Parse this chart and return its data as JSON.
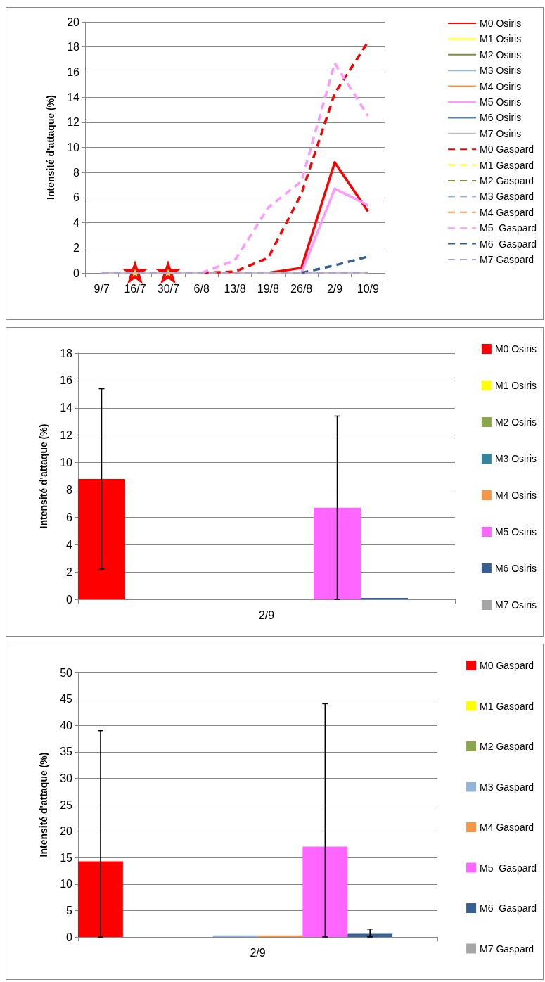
{
  "chart_data": [
    {
      "type": "line",
      "ylabel": "Intensité d'attaque (%)",
      "categories": [
        "9/7",
        "16/7",
        "30/7",
        "6/8",
        "13/8",
        "19/8",
        "26/8",
        "2/9",
        "10/9"
      ],
      "ylim": [
        0,
        20
      ],
      "yticks": [
        0,
        2,
        4,
        6,
        8,
        10,
        12,
        14,
        16,
        18,
        20
      ],
      "grid": "y",
      "legend": "right",
      "marker": "none",
      "series": [
        {
          "name": "M0 Osiris",
          "color": "#ff0000",
          "line_style": "solid",
          "values": [
            null,
            null,
            null,
            null,
            null,
            0,
            0.4,
            8.8,
            4.9
          ]
        },
        {
          "name": "M1 Osiris",
          "color": "#ffff00",
          "line_style": "solid",
          "values": [
            null,
            null,
            null,
            null,
            null,
            null,
            null,
            null,
            null
          ]
        },
        {
          "name": "M2 Osiris",
          "color": "#77933c",
          "line_style": "solid",
          "values": [
            null,
            null,
            null,
            null,
            null,
            null,
            null,
            null,
            null
          ]
        },
        {
          "name": "M3 Osiris",
          "color": "#95b3d7",
          "line_style": "solid",
          "values": [
            null,
            null,
            null,
            null,
            null,
            null,
            null,
            null,
            null
          ]
        },
        {
          "name": "M4 Osiris",
          "color": "#f79646",
          "line_style": "solid",
          "values": [
            null,
            null,
            null,
            null,
            null,
            null,
            null,
            null,
            null
          ]
        },
        {
          "name": "M5 Osiris",
          "color": "#ff99ff",
          "line_style": "solid",
          "values": [
            null,
            null,
            null,
            null,
            null,
            null,
            0,
            6.7,
            5.4
          ]
        },
        {
          "name": "M6 Osiris",
          "color": "#4f81bd",
          "line_style": "solid",
          "values": [
            null,
            null,
            null,
            null,
            null,
            null,
            null,
            null,
            null
          ]
        },
        {
          "name": "M7 Osiris",
          "color": "#bfbfbf",
          "line_style": "solid",
          "values": [
            0,
            0,
            0,
            0,
            0,
            0,
            0,
            0,
            0
          ]
        },
        {
          "name": "M0 Gaspard",
          "color": "#ff0000",
          "line_style": "dashed",
          "values": [
            null,
            null,
            null,
            0,
            0.1,
            1.2,
            6.3,
            14.3,
            18.4
          ]
        },
        {
          "name": "M1 Gaspard",
          "color": "#ffff00",
          "line_style": "dashed",
          "values": [
            null,
            null,
            null,
            null,
            null,
            null,
            null,
            null,
            null
          ]
        },
        {
          "name": "M2 Gaspard",
          "color": "#77933c",
          "line_style": "dashed",
          "values": [
            null,
            null,
            null,
            null,
            null,
            null,
            null,
            null,
            null
          ]
        },
        {
          "name": "M3 Gaspard",
          "color": "#95b3d7",
          "line_style": "dashed",
          "values": [
            null,
            null,
            null,
            null,
            null,
            null,
            null,
            null,
            null
          ]
        },
        {
          "name": "M4 Gaspard",
          "color": "#f79646",
          "line_style": "dashed",
          "values": [
            null,
            null,
            null,
            null,
            null,
            null,
            null,
            null,
            null
          ]
        },
        {
          "name": "M5  Gaspard",
          "color": "#ff99ff",
          "line_style": "dashed",
          "values": [
            null,
            null,
            null,
            0,
            1.0,
            5.2,
            7.3,
            16.7,
            12.5
          ]
        },
        {
          "name": "M6  Gaspard",
          "color": "#376092",
          "line_style": "dashed",
          "values": [
            null,
            null,
            null,
            null,
            null,
            null,
            0,
            0.6,
            1.3
          ]
        },
        {
          "name": "M7 Gaspard",
          "color": "#b3a2c7",
          "line_style": "dashed",
          "values": [
            0,
            0,
            0,
            0,
            0,
            0,
            0,
            0,
            0
          ]
        }
      ]
    },
    {
      "type": "bar",
      "ylabel": "Intensité d'attaque (%)",
      "categories": [
        "2/9"
      ],
      "ylim": [
        0,
        18
      ],
      "yticks": [
        0,
        2,
        4,
        6,
        8,
        10,
        12,
        14,
        16,
        18
      ],
      "grid": "y",
      "legend": "right",
      "series": [
        {
          "name": "M0 Osiris",
          "color": "#ff0000",
          "values": [
            8.8
          ],
          "errors": [
            [
              2.2,
              15.4
            ]
          ]
        },
        {
          "name": "M1 Osiris",
          "color": "#ffff00",
          "values": [
            0
          ]
        },
        {
          "name": "M2 Osiris",
          "color": "#8aa64a",
          "values": [
            0
          ]
        },
        {
          "name": "M3 Osiris",
          "color": "#31859c",
          "values": [
            0
          ]
        },
        {
          "name": "M4 Osiris",
          "color": "#f79646",
          "values": [
            0
          ]
        },
        {
          "name": "M5 Osiris",
          "color": "#ff66ff",
          "values": [
            6.7
          ],
          "errors": [
            [
              0,
              13.4
            ]
          ]
        },
        {
          "name": "M6 Osiris",
          "color": "#376092",
          "values": [
            0.1
          ]
        },
        {
          "name": "M7 Osiris",
          "color": "#a6a6a6",
          "values": [
            0
          ]
        }
      ]
    },
    {
      "type": "bar",
      "ylabel": "Intensité d'attaque (%)",
      "categories": [
        "2/9"
      ],
      "ylim": [
        0,
        50
      ],
      "yticks": [
        0,
        5,
        10,
        15,
        20,
        25,
        30,
        35,
        40,
        45,
        50
      ],
      "grid": "y",
      "legend": "right",
      "series": [
        {
          "name": "M0 Gaspard",
          "color": "#ff0000",
          "values": [
            14.3
          ],
          "errors": [
            [
              0,
              39
            ]
          ]
        },
        {
          "name": "M1 Gaspard",
          "color": "#ffff00",
          "values": [
            0
          ]
        },
        {
          "name": "M2 Gaspard",
          "color": "#8aa64a",
          "values": [
            0
          ]
        },
        {
          "name": "M3 Gaspard",
          "color": "#95b3d7",
          "values": [
            0.3
          ]
        },
        {
          "name": "M4 Gaspard",
          "color": "#f79646",
          "values": [
            0.3
          ]
        },
        {
          "name": "M5  Gaspard",
          "color": "#ff66ff",
          "values": [
            17.1
          ],
          "errors": [
            [
              0,
              44.1
            ]
          ]
        },
        {
          "name": "M6  Gaspard",
          "color": "#376092",
          "values": [
            0.6
          ],
          "errors": [
            [
              0,
              1.5
            ]
          ]
        },
        {
          "name": "M7 Gaspard",
          "color": "#a6a6a6",
          "values": [
            0
          ]
        }
      ]
    }
  ]
}
